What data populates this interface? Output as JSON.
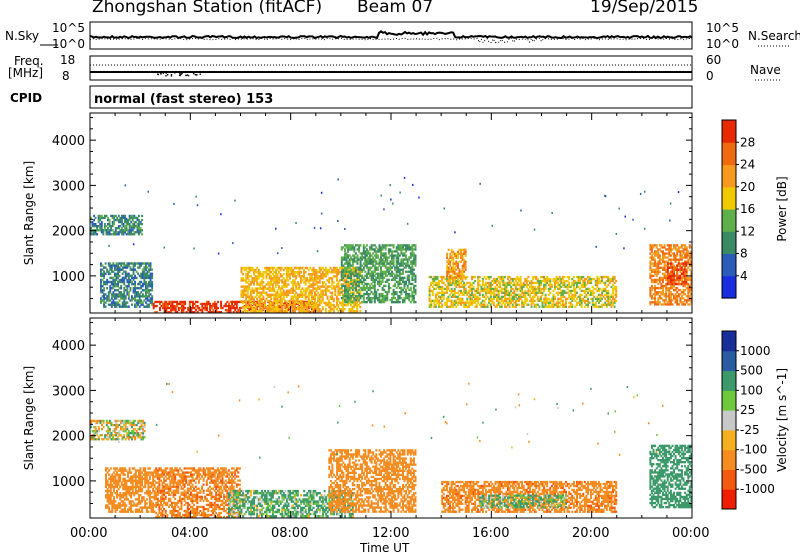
{
  "header": {
    "station": "Zhongshan Station (fitACF)",
    "beam": "Beam 07",
    "date": "19/Sep/2015"
  },
  "strip_labels": {
    "nsky": "N.Sky",
    "nsky_top": "10^5",
    "nsky_bottom": "10^0",
    "nsearch": "N.Search",
    "nsearch_top": "10^5",
    "nsearch_bottom": "10^0",
    "freq_line1": "Freq.",
    "freq_line2": "[MHz]",
    "freq_top": "18",
    "freq_bottom": "8",
    "nave": "Nave",
    "nave_top": "60",
    "nave_bottom": "0",
    "cpid": "CPID",
    "mode": "normal (fast stereo) 153"
  },
  "x_axis": {
    "ticks": [
      "00:00",
      "04:00",
      "08:00",
      "12:00",
      "16:00",
      "20:00",
      "00:00"
    ],
    "label": "Time UT"
  },
  "colors": {
    "power_scale": [
      "#1a2ee0",
      "#2a5cb8",
      "#3b8a66",
      "#5fb04a",
      "#f0c800",
      "#f59a1e",
      "#f06a10",
      "#e82a00"
    ],
    "velocity_scale": [
      "#ee1c00",
      "#f25a10",
      "#f58c20",
      "#f5b020",
      "#c8c8c8",
      "#6ec83c",
      "#3c9a6a",
      "#2a5ca0",
      "#1a2e9a"
    ]
  },
  "chart_data": [
    {
      "type": "heatmap",
      "title": "",
      "xlabel": "",
      "ylabel": "Slant Range [km]",
      "xlim": [
        "00:00",
        "24:00"
      ],
      "ylim": [
        180,
        4600
      ],
      "yticks": [
        "1000",
        "2000",
        "3000",
        "4000"
      ],
      "colorbar_label": "Power [dB]",
      "colorbar_ticks": [
        "4",
        "8",
        "12",
        "16",
        "20",
        "24",
        "28"
      ],
      "colorbar_range": [
        0,
        32
      ],
      "regions": [
        {
          "t0": 0.0,
          "t1": 2.1,
          "r0": 1900,
          "r1": 2350,
          "value": 10
        },
        {
          "t0": 0.4,
          "t1": 2.5,
          "r0": 300,
          "r1": 1300,
          "value": 9
        },
        {
          "t0": 2.5,
          "t1": 9.0,
          "r0": 180,
          "r1": 450,
          "value": 30
        },
        {
          "t0": 6.0,
          "t1": 10.8,
          "r0": 200,
          "r1": 1200,
          "value": 20
        },
        {
          "t0": 10.0,
          "t1": 13.0,
          "r0": 400,
          "r1": 1700,
          "value": 12
        },
        {
          "t0": 13.5,
          "t1": 21.0,
          "r0": 300,
          "r1": 1000,
          "value": 18
        },
        {
          "t0": 14.2,
          "t1": 15.0,
          "r0": 900,
          "r1": 1600,
          "value": 22
        },
        {
          "t0": 22.3,
          "t1": 24.0,
          "r0": 350,
          "r1": 1700,
          "value": 24
        },
        {
          "t0": 23.0,
          "t1": 23.8,
          "r0": 800,
          "r1": 1300,
          "value": 29
        }
      ]
    },
    {
      "type": "heatmap",
      "title": "",
      "xlabel": "Time UT",
      "ylabel": "Slant Range [km]",
      "xlim": [
        "00:00",
        "24:00"
      ],
      "ylim": [
        180,
        4600
      ],
      "yticks": [
        "1000",
        "2000",
        "3000",
        "4000"
      ],
      "colorbar_label": "Velocity [m s^-1]",
      "colorbar_ticks": [
        "1000",
        "500",
        "100",
        "25",
        "-25",
        "-100",
        "-500",
        "-1000"
      ],
      "colorbar_range": [
        -1500,
        1500
      ],
      "regions": [
        {
          "t0": 0.0,
          "t1": 2.2,
          "r0": 1900,
          "r1": 2350,
          "value": 0
        },
        {
          "t0": 0.6,
          "t1": 2.6,
          "r0": 300,
          "r1": 1300,
          "value": -300
        },
        {
          "t0": 2.6,
          "t1": 6.0,
          "r0": 180,
          "r1": 1300,
          "value": -400
        },
        {
          "t0": 5.5,
          "t1": 10.5,
          "r0": 200,
          "r1": 800,
          "value": 150
        },
        {
          "t0": 9.5,
          "t1": 13.0,
          "r0": 300,
          "r1": 1700,
          "value": -300
        },
        {
          "t0": 14.0,
          "t1": 21.0,
          "r0": 300,
          "r1": 1000,
          "value": -350
        },
        {
          "t0": 15.5,
          "t1": 19.0,
          "r0": 400,
          "r1": 700,
          "value": 120
        },
        {
          "t0": 22.3,
          "t1": 24.0,
          "r0": 400,
          "r1": 1800,
          "value": 300
        }
      ]
    }
  ]
}
